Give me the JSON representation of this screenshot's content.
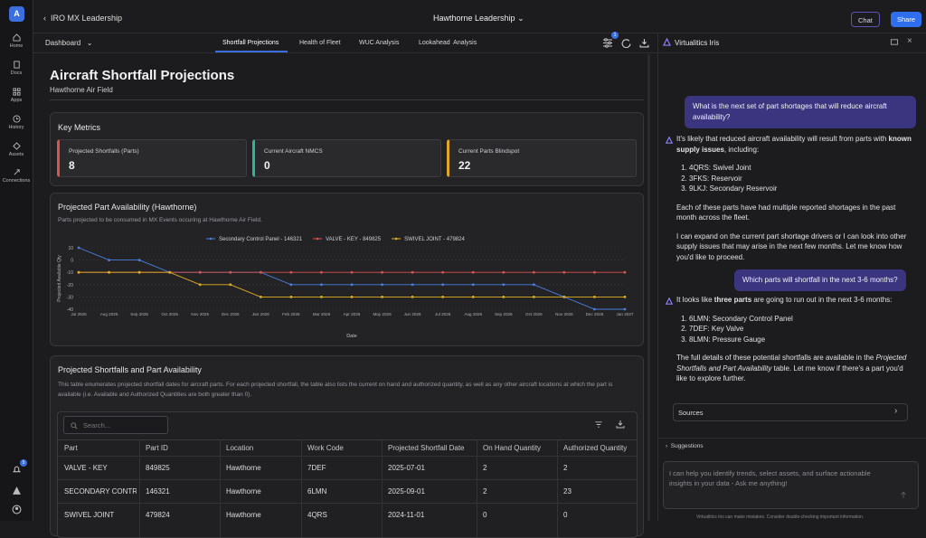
{
  "rail": {
    "logo": "A",
    "items": [
      "Home",
      "Docs",
      "Apps",
      "History",
      "Assets",
      "Connections"
    ],
    "badge": 5
  },
  "header": {
    "back": "IRO MX Leadership",
    "title": "Hawthorne Leadership",
    "chat": "Chat",
    "share": "Share"
  },
  "nav": {
    "view": "Dashboard",
    "tabs": [
      "Shortfall Projections",
      "Health of Fleet",
      "WUC Analysis",
      "Lookahead  Analysis"
    ],
    "filter_badge": 1
  },
  "page": {
    "title": "Aircraft Shortfall Projections",
    "subtitle": "Hawthorne Air Field"
  },
  "metrics": {
    "title": "Key Metrics",
    "cards": [
      {
        "label": "Projected Shortfalls (Parts)",
        "value": 8,
        "color": "#d9534f"
      },
      {
        "label": "Current Aircraft NMCS",
        "value": 0,
        "color": "#2fb596"
      },
      {
        "label": "Current Parts Blindspot",
        "value": 22,
        "color": "#e0a826"
      }
    ]
  },
  "chart_data": {
    "type": "line",
    "title": "Projected Part Availability (Hawthorne)",
    "subtitle": "Parts projected to be consumed in MX Events occuring at Hawthorne Air Field.",
    "x_label": "Date",
    "y_label": "Projected Available Qty",
    "categories": [
      "Jul 2025",
      "Aug 2025",
      "Sep 2025",
      "Oct 2025",
      "Nov 2025",
      "Dec 2025",
      "Jan 2026",
      "Feb 2026",
      "Mar 2026",
      "Apr 2026",
      "May 2026",
      "Jun 2026",
      "Jul 2026",
      "Aug 2026",
      "Sep 2026",
      "Oct 2026",
      "Nov 2026",
      "Dec 2026",
      "Jan 2027"
    ],
    "series": [
      {
        "name": "Secondary Control Panel - 146321",
        "color": "#4a7fe0",
        "values": [
          10,
          0,
          0,
          -10,
          -10,
          -10,
          -10,
          -20,
          -20,
          -20,
          -20,
          -20,
          -20,
          -20,
          -20,
          -20,
          -30,
          -40,
          -40
        ]
      },
      {
        "name": "VALVE - KEY - 849825",
        "color": "#d9534f",
        "values": [
          -10,
          -10,
          -10,
          -10,
          -10,
          -10,
          -10,
          -10,
          -10,
          -10,
          -10,
          -10,
          -10,
          -10,
          -10,
          -10,
          -10,
          -10,
          -10
        ]
      },
      {
        "name": "SWIVEL JOINT - 479824",
        "color": "#e0b020",
        "values": [
          -10,
          -10,
          -10,
          -10,
          -20,
          -20,
          -30,
          -30,
          -30,
          -30,
          -30,
          -30,
          -30,
          -30,
          -30,
          -30,
          -30,
          -30,
          -30
        ]
      }
    ],
    "ylim": [
      -40,
      10
    ],
    "yticks": [
      10,
      0,
      -10,
      -20,
      -30,
      -40
    ],
    "grid": true
  },
  "table": {
    "title": "Projected Shortfalls and Part Availability",
    "description": "This table enumerates projected shortfall dates for aircraft parts. For each projected shortfall, the table also lists the current on hand and authorized quantity, as well as any other aircraft locations at which the part is available (i.e. Available and Authorized Quantities are both greater than 0).",
    "search": "Search...",
    "columns": [
      "Part",
      "Part ID",
      "Location",
      "Work Code",
      "Projected Shortfall Date",
      "On Hand Quantity",
      "Authorized Quantity"
    ],
    "rows": [
      [
        "VALVE - KEY",
        "849825",
        "Hawthorne",
        "7DEF",
        "2025-07-01",
        2,
        2
      ],
      [
        "SECONDARY CONTRO",
        "146321",
        "Hawthorne",
        "6LMN",
        "2025-09-01",
        2,
        23
      ],
      [
        "SWIVEL JOINT",
        "479824",
        "Hawthorne",
        "4QRS",
        "2024-11-01",
        0,
        0
      ]
    ]
  },
  "iris": {
    "title": "Virtualitics Iris",
    "q1": "What is the next set of part shortages that will reduce aircraft availability?",
    "a1": {
      "intro": [
        "It's likely that reduced aircraft availability will result from parts with ",
        "known supply issues",
        ", including:"
      ],
      "list": [
        "4QRS: Swivel Joint",
        "3FKS: Reservoir",
        "9LKJ: Secondary Reservoir"
      ],
      "p2": "Each of these parts have had multiple reported shortages in the past month across the fleet.",
      "p3": "I can expand on the current part shortage drivers or I can look into other supply issues that may arise in the next few months. Let me know how you'd like to proceed."
    },
    "q2": "Which parts will shortfall in the next 3-6 months?",
    "a2": {
      "intro": [
        "It looks like ",
        "three parts",
        " are going to run out in the next 3-6 months:"
      ],
      "list": [
        "6LMN: Secondary Control Panel",
        "7DEF: Key Valve",
        "8LMN: Pressure Gauge"
      ],
      "p2": [
        "The full details of these potential shortfalls are available in the ",
        "Projected Shortfalls and Part Availability",
        " table. Let me know if there's a part you'd like to explore further."
      ]
    },
    "sources": "Sources",
    "suggestions": "Suggestions",
    "input_placeholder": "I can help you identify trends, select assets, and surface actionable insights in your data - Ask me anything!",
    "disclaimer": "Virtualitics Iris can make mistakes. Consider double-checking important information."
  }
}
